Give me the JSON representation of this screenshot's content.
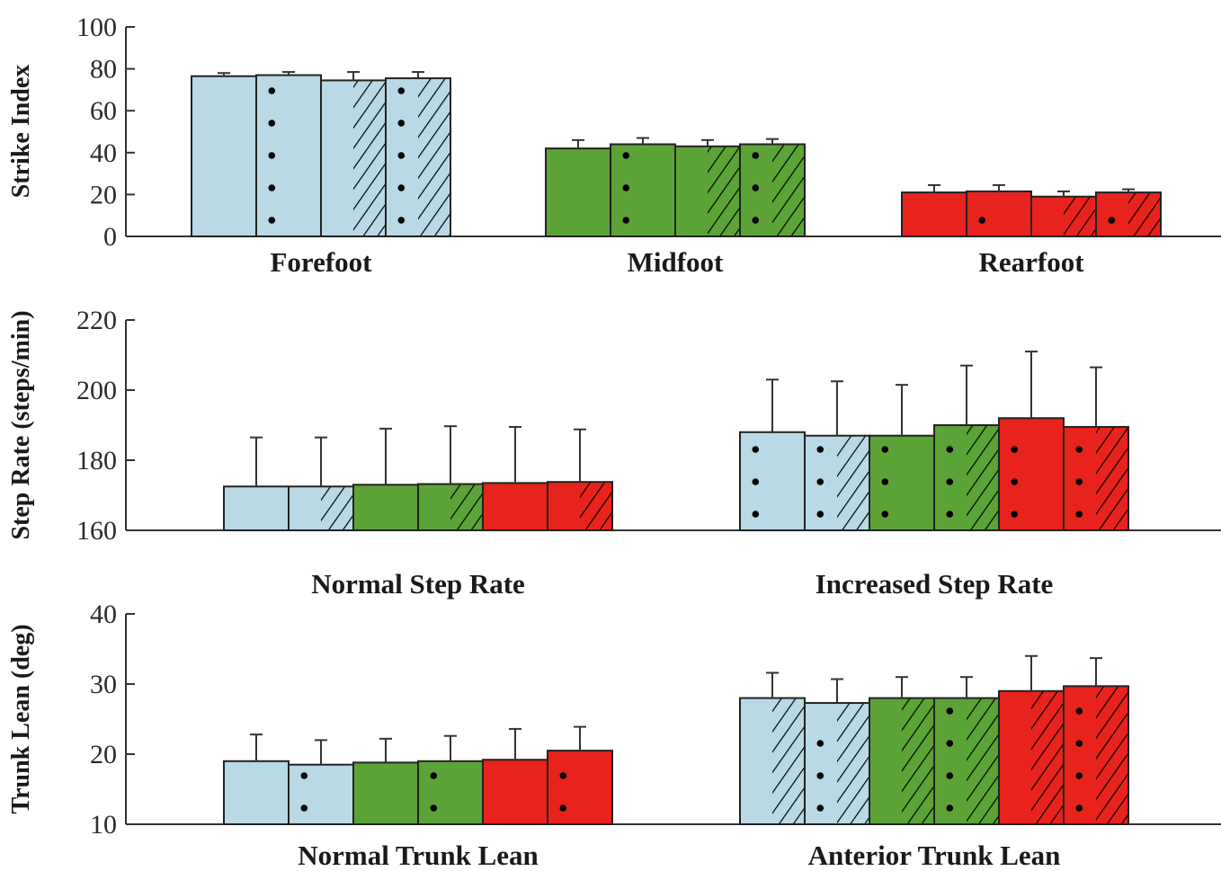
{
  "chart_data": [
    {
      "type": "bar",
      "ylabel": "Strike Index",
      "ylim": [
        0,
        100
      ],
      "yticks": [
        "0",
        "20",
        "40",
        "60",
        "80",
        "100"
      ],
      "groups": [
        {
          "label": "Forefoot",
          "color": "#b8d9e5",
          "bars": [
            {
              "value": 76.5,
              "err": 1.5,
              "dots": false,
              "hatch": false
            },
            {
              "value": 77.0,
              "err": 1.5,
              "dots": true,
              "hatch": false
            },
            {
              "value": 74.5,
              "err": 4.0,
              "dots": false,
              "hatch": true
            },
            {
              "value": 75.5,
              "err": 3.0,
              "dots": true,
              "hatch": true
            }
          ]
        },
        {
          "label": "Midfoot",
          "color": "#5ba336",
          "bars": [
            {
              "value": 42.0,
              "err": 4.0,
              "dots": false,
              "hatch": false
            },
            {
              "value": 44.0,
              "err": 3.0,
              "dots": true,
              "hatch": false
            },
            {
              "value": 43.0,
              "err": 3.0,
              "dots": false,
              "hatch": true
            },
            {
              "value": 44.0,
              "err": 2.5,
              "dots": true,
              "hatch": true
            }
          ]
        },
        {
          "label": "Rearfoot",
          "color": "#e8221c",
          "bars": [
            {
              "value": 21.0,
              "err": 3.5,
              "dots": false,
              "hatch": false
            },
            {
              "value": 21.5,
              "err": 3.0,
              "dots": true,
              "hatch": false
            },
            {
              "value": 19.0,
              "err": 2.5,
              "dots": false,
              "hatch": true
            },
            {
              "value": 21.0,
              "err": 1.5,
              "dots": true,
              "hatch": true
            }
          ]
        }
      ]
    },
    {
      "type": "bar",
      "ylabel": "Step Rate (steps/min)",
      "ylim": [
        160,
        220
      ],
      "yticks": [
        "160",
        "180",
        "200",
        "220"
      ],
      "groups": [
        {
          "label": "Normal Step Rate",
          "bars": [
            {
              "value": 172.5,
              "err": 14.0,
              "color": "#b8d9e5",
              "dots": false,
              "hatch": false
            },
            {
              "value": 172.5,
              "err": 14.0,
              "color": "#b8d9e5",
              "dots": false,
              "hatch": true
            },
            {
              "value": 173.0,
              "err": 16.0,
              "color": "#5ba336",
              "dots": false,
              "hatch": false
            },
            {
              "value": 173.2,
              "err": 16.5,
              "color": "#5ba336",
              "dots": false,
              "hatch": true
            },
            {
              "value": 173.5,
              "err": 16.0,
              "color": "#e8221c",
              "dots": false,
              "hatch": false
            },
            {
              "value": 173.8,
              "err": 15.0,
              "color": "#e8221c",
              "dots": false,
              "hatch": true
            }
          ]
        },
        {
          "label": "Increased Step Rate",
          "bars": [
            {
              "value": 188.0,
              "err": 15.0,
              "color": "#b8d9e5",
              "dots": true,
              "hatch": false
            },
            {
              "value": 187.0,
              "err": 15.5,
              "color": "#b8d9e5",
              "dots": true,
              "hatch": true
            },
            {
              "value": 187.0,
              "err": 14.5,
              "color": "#5ba336",
              "dots": true,
              "hatch": false
            },
            {
              "value": 190.0,
              "err": 17.0,
              "color": "#5ba336",
              "dots": true,
              "hatch": true
            },
            {
              "value": 192.0,
              "err": 19.0,
              "color": "#e8221c",
              "dots": true,
              "hatch": false
            },
            {
              "value": 189.5,
              "err": 17.0,
              "color": "#e8221c",
              "dots": true,
              "hatch": true
            }
          ]
        }
      ]
    },
    {
      "type": "bar",
      "ylabel": "Trunk Lean (deg)",
      "ylim": [
        10,
        40
      ],
      "yticks": [
        "10",
        "20",
        "30",
        "40"
      ],
      "groups": [
        {
          "label": "Normal Trunk Lean",
          "bars": [
            {
              "value": 19.0,
              "err": 3.8,
              "color": "#b8d9e5",
              "dots": false,
              "hatch": false
            },
            {
              "value": 18.5,
              "err": 3.5,
              "color": "#b8d9e5",
              "dots": true,
              "hatch": false
            },
            {
              "value": 18.8,
              "err": 3.4,
              "color": "#5ba336",
              "dots": false,
              "hatch": false
            },
            {
              "value": 19.0,
              "err": 3.6,
              "color": "#5ba336",
              "dots": true,
              "hatch": false
            },
            {
              "value": 19.2,
              "err": 4.4,
              "color": "#e8221c",
              "dots": false,
              "hatch": false
            },
            {
              "value": 20.5,
              "err": 3.4,
              "color": "#e8221c",
              "dots": true,
              "hatch": false
            }
          ]
        },
        {
          "label": "Anterior Trunk Lean",
          "bars": [
            {
              "value": 28.0,
              "err": 3.6,
              "color": "#b8d9e5",
              "dots": false,
              "hatch": true
            },
            {
              "value": 27.3,
              "err": 3.4,
              "color": "#b8d9e5",
              "dots": true,
              "hatch": true
            },
            {
              "value": 28.0,
              "err": 3.0,
              "color": "#5ba336",
              "dots": false,
              "hatch": true
            },
            {
              "value": 28.0,
              "err": 3.0,
              "color": "#5ba336",
              "dots": true,
              "hatch": true
            },
            {
              "value": 29.0,
              "err": 5.0,
              "color": "#e8221c",
              "dots": false,
              "hatch": true
            },
            {
              "value": 29.7,
              "err": 4.0,
              "color": "#e8221c",
              "dots": true,
              "hatch": true
            }
          ]
        }
      ]
    }
  ]
}
